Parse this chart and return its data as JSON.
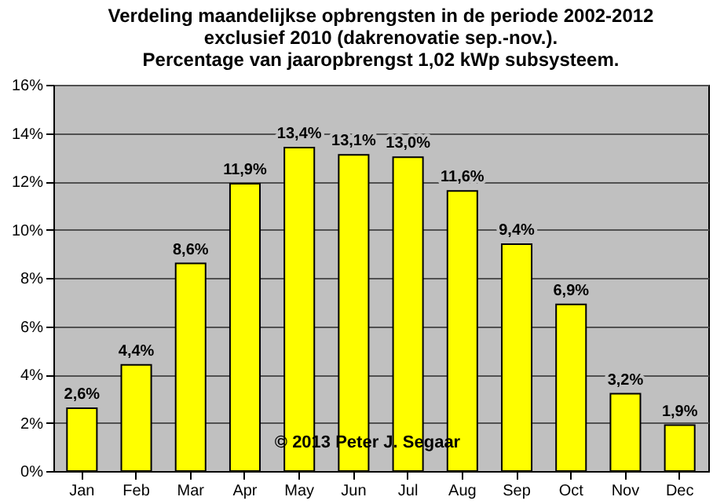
{
  "chart_data": {
    "type": "bar",
    "title": "Verdeling maandelijkse opbrengsten in de periode 2002-2012\nexclusief 2010 (dakrenovatie sep.-nov.).\nPercentage van jaaropbrengst 1,02 kWp subsysteem.",
    "categories": [
      "Jan",
      "Feb",
      "Mar",
      "Apr",
      "May",
      "Jun",
      "Jul",
      "Aug",
      "Sep",
      "Oct",
      "Nov",
      "Dec"
    ],
    "values": [
      2.6,
      4.4,
      8.6,
      11.9,
      13.4,
      13.1,
      13.0,
      11.6,
      9.4,
      6.9,
      3.2,
      1.9
    ],
    "value_labels": [
      "2,6%",
      "4,4%",
      "8,6%",
      "11,9%",
      "13,4%",
      "13,1%",
      "13,0%",
      "11,6%",
      "9,4%",
      "6,9%",
      "3,2%",
      "1,9%"
    ],
    "color": "#ffff00",
    "ylim": [
      0,
      16
    ],
    "yticks": [
      {
        "value": 0,
        "label": "0%"
      },
      {
        "value": 2,
        "label": "2%"
      },
      {
        "value": 4,
        "label": "4%"
      },
      {
        "value": 6,
        "label": "6%"
      },
      {
        "value": 8,
        "label": "8%"
      },
      {
        "value": 10,
        "label": "10%"
      },
      {
        "value": 12,
        "label": "12%"
      },
      {
        "value": 14,
        "label": "14%"
      },
      {
        "value": 16,
        "label": "16%"
      }
    ],
    "grid": "y",
    "annotations": [
      "© 2013 Peter J. Segaar"
    ]
  }
}
